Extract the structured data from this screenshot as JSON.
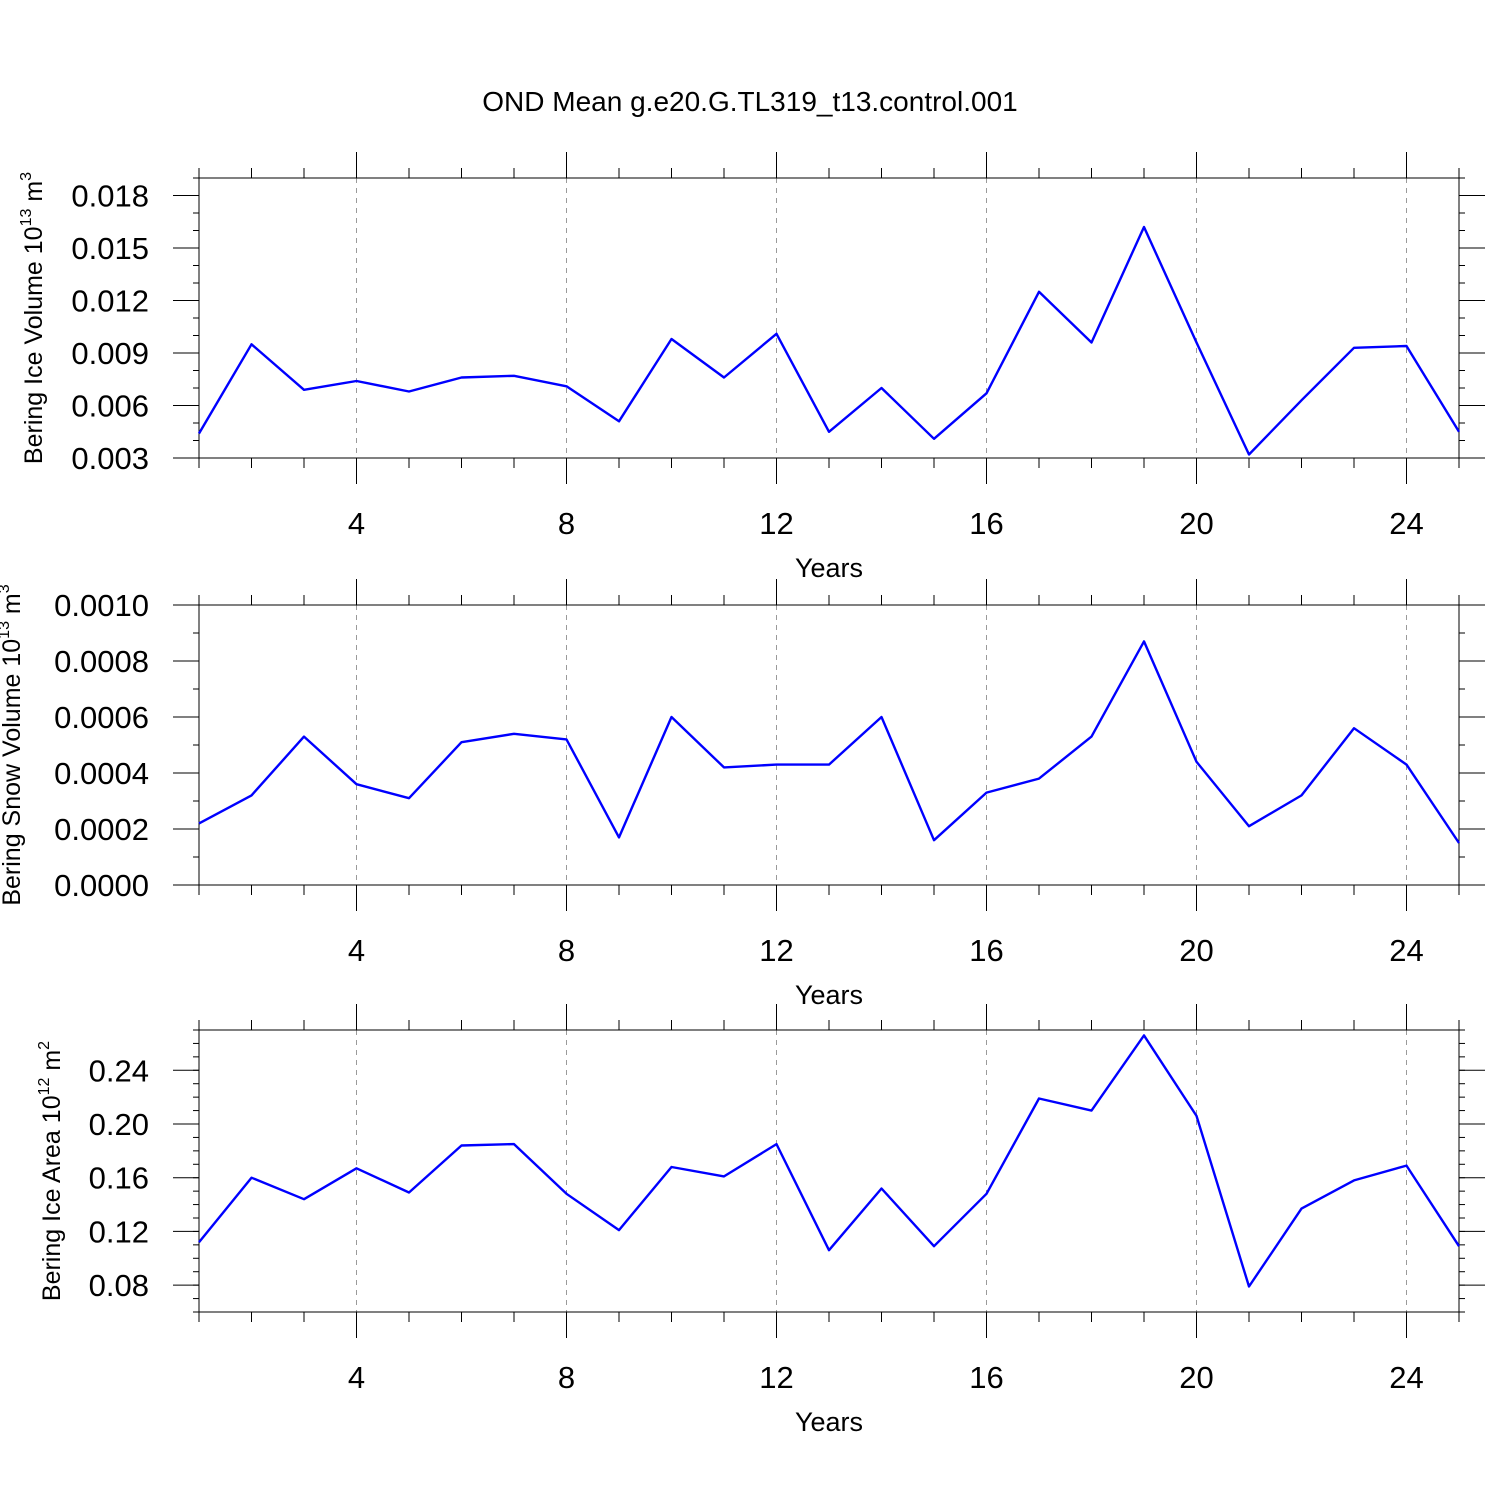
{
  "title": "OND Mean g.e20.G.TL319_t13.control.001",
  "chart_data": [
    {
      "type": "line",
      "ylabel": "Bering Ice Volume 10",
      "ylabel_exp": "13",
      "ylabel_unit": " m",
      "ylabel_unit_exp": "3",
      "xlabel": "Years",
      "xlim": [
        1,
        25
      ],
      "ylim": [
        0.003,
        0.019
      ],
      "xticks": [
        "4",
        "8",
        "12",
        "16",
        "20",
        "24"
      ],
      "yticks": [
        "0.003",
        "0.006",
        "0.009",
        "0.012",
        "0.015",
        "0.018"
      ],
      "color": "#0000ff",
      "grid": "vertical dashed at major x ticks",
      "series": [
        {
          "x": [
            1,
            2,
            3,
            4,
            5,
            6,
            7,
            8,
            9,
            10,
            11,
            12,
            13,
            14,
            15,
            16,
            17,
            18,
            19,
            20,
            21,
            22,
            23,
            24,
            25
          ],
          "values": [
            0.0044,
            0.0095,
            0.0069,
            0.0074,
            0.0068,
            0.0076,
            0.0077,
            0.0071,
            0.0051,
            0.0098,
            0.0076,
            0.0101,
            0.0045,
            0.007,
            0.0041,
            0.0067,
            0.0125,
            0.0096,
            0.0162,
            0.0096,
            0.0032,
            0.0063,
            0.0093,
            0.0094,
            0.0045
          ]
        }
      ]
    },
    {
      "type": "line",
      "ylabel": "Bering Snow Volume 10",
      "ylabel_exp": "13",
      "ylabel_unit": " m",
      "ylabel_unit_exp": "3",
      "xlabel": "Years",
      "xlim": [
        1,
        25
      ],
      "ylim": [
        0,
        0.001
      ],
      "xticks": [
        "4",
        "8",
        "12",
        "16",
        "20",
        "24"
      ],
      "yticks": [
        "0.0000",
        "0.0002",
        "0.0004",
        "0.0006",
        "0.0008",
        "0.0010"
      ],
      "color": "#0000ff",
      "grid": "vertical dashed at major x ticks",
      "series": [
        {
          "x": [
            1,
            2,
            3,
            4,
            5,
            6,
            7,
            8,
            9,
            10,
            11,
            12,
            13,
            14,
            15,
            16,
            17,
            18,
            19,
            20,
            21,
            22,
            23,
            24,
            25
          ],
          "values": [
            0.00022,
            0.00032,
            0.00053,
            0.00036,
            0.00031,
            0.00051,
            0.00054,
            0.00052,
            0.00017,
            0.0006,
            0.00042,
            0.00043,
            0.00043,
            0.0006,
            0.00016,
            0.00033,
            0.00038,
            0.00053,
            0.00087,
            0.00044,
            0.00021,
            0.00032,
            0.00056,
            0.00043,
            0.00015
          ]
        }
      ]
    },
    {
      "type": "line",
      "ylabel": "Bering Ice Area 10",
      "ylabel_exp": "12",
      "ylabel_unit": " m",
      "ylabel_unit_exp": "2",
      "xlabel": "Years",
      "xlim": [
        1,
        25
      ],
      "ylim": [
        0.06,
        0.27
      ],
      "xticks": [
        "4",
        "8",
        "12",
        "16",
        "20",
        "24"
      ],
      "yticks": [
        "0.08",
        "0.12",
        "0.16",
        "0.20",
        "0.24"
      ],
      "color": "#0000ff",
      "grid": "vertical dashed at major x ticks",
      "series": [
        {
          "x": [
            1,
            2,
            3,
            4,
            5,
            6,
            7,
            8,
            9,
            10,
            11,
            12,
            13,
            14,
            15,
            16,
            17,
            18,
            19,
            20,
            21,
            22,
            23,
            24,
            25
          ],
          "values": [
            0.112,
            0.16,
            0.144,
            0.167,
            0.149,
            0.184,
            0.185,
            0.148,
            0.121,
            0.168,
            0.161,
            0.185,
            0.106,
            0.152,
            0.109,
            0.148,
            0.219,
            0.21,
            0.266,
            0.206,
            0.079,
            0.137,
            0.158,
            0.169,
            0.109
          ]
        }
      ]
    }
  ]
}
